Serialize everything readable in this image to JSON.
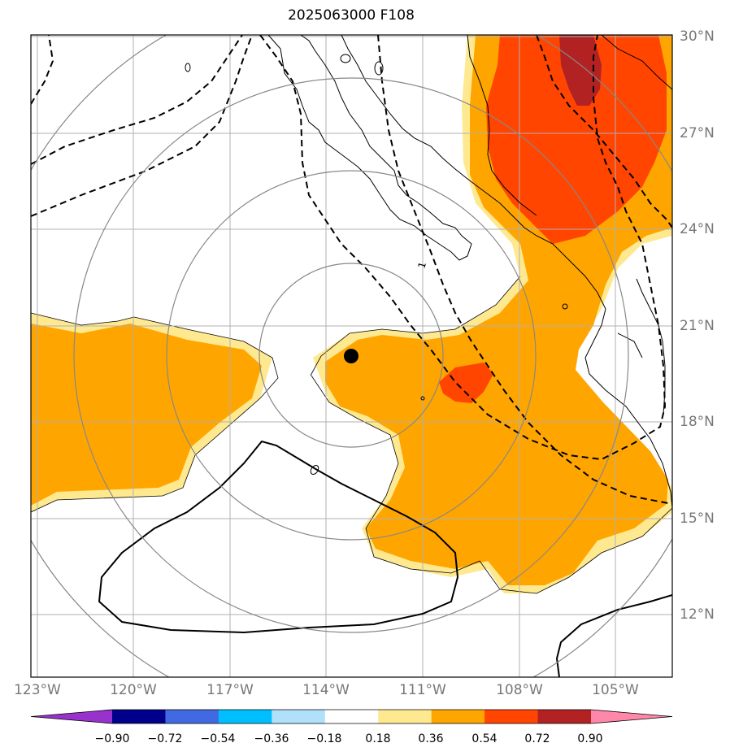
{
  "title": "2025063000 F108",
  "map": {
    "lat_labels": [
      {
        "value": 30,
        "label": "30°N"
      },
      {
        "value": 27,
        "label": "27°N"
      },
      {
        "value": 24,
        "label": "24°N"
      },
      {
        "value": 21,
        "label": "21°N"
      },
      {
        "value": 18,
        "label": "18°N"
      },
      {
        "value": 15,
        "label": "15°N"
      },
      {
        "value": 12,
        "label": "12°N"
      }
    ],
    "lon_labels": [
      {
        "value": -123,
        "label": "123°W"
      },
      {
        "value": -120,
        "label": "120°W"
      },
      {
        "value": -117,
        "label": "117°W"
      },
      {
        "value": -114,
        "label": "114°W"
      },
      {
        "value": -111,
        "label": "111°W"
      },
      {
        "value": -108,
        "label": "108°W"
      },
      {
        "value": -105,
        "label": "105°W"
      }
    ],
    "extent": {
      "lon_min": -123.2,
      "lon_max": -103.2,
      "lat_min": 10.1,
      "lat_max": 30.1
    },
    "storm_center": {
      "lon": -113.0,
      "lat": 20.0
    },
    "range_rings_count": 4,
    "contour_label": "1",
    "colors": {
      "fill_light": "#ffe990",
      "fill_orange": "#ffa500",
      "fill_red_orange": "#ff4500",
      "fill_dark_red": "#b22222"
    }
  },
  "colorbar": {
    "colors": [
      "#9932cc",
      "#00008b",
      "#4169e1",
      "#00bfff",
      "#b0e0fa",
      "#ffffff",
      "#ffe990",
      "#ffa500",
      "#ff4500",
      "#b22222",
      "#ff88aa"
    ],
    "tick_labels": [
      "−0.90",
      "−0.72",
      "−0.54",
      "−0.36",
      "−0.18",
      "0.18",
      "0.36",
      "0.54",
      "0.72",
      "0.90"
    ]
  }
}
